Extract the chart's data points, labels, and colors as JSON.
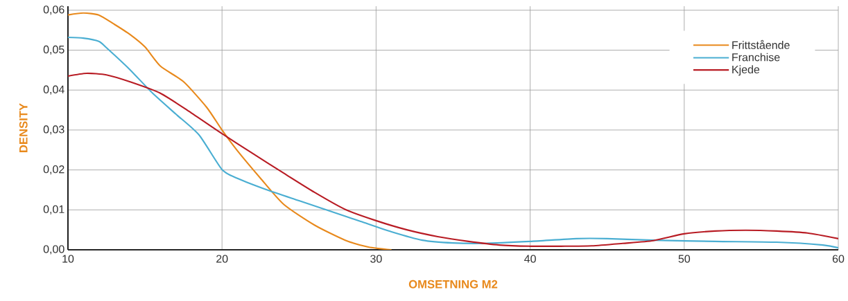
{
  "chart_data": {
    "type": "line",
    "xlabel": "OMSETNING M2",
    "ylabel": "DENSITY",
    "xlim": [
      10,
      60
    ],
    "ylim": [
      0,
      0.061
    ],
    "xticks": [
      10,
      20,
      30,
      40,
      50,
      60
    ],
    "yticks": [
      {
        "value": 0,
        "label": "0,00"
      },
      {
        "value": 0.01,
        "label": "0,01"
      },
      {
        "value": 0.02,
        "label": "0,02"
      },
      {
        "value": 0.03,
        "label": "0,03"
      },
      {
        "value": 0.04,
        "label": "0,04"
      },
      {
        "value": 0.05,
        "label": "0,05"
      },
      {
        "value": 0.06,
        "label": "0,06"
      }
    ],
    "grid": true,
    "legend": "top right",
    "marker": "none",
    "line_style": "solid",
    "series": [
      {
        "name": "Frittstående",
        "color": "#e8891c",
        "x": [
          10,
          11,
          12,
          13,
          14,
          15,
          16,
          17.5,
          19,
          20,
          21,
          22.5,
          24,
          26,
          28,
          29.5,
          31
        ],
        "values": [
          0.0588,
          0.0593,
          0.0588,
          0.0565,
          0.054,
          0.0508,
          0.046,
          0.0421,
          0.0357,
          0.03,
          0.0248,
          0.0179,
          0.0114,
          0.0062,
          0.0024,
          0.0007,
          0
        ]
      },
      {
        "name": "Franchise",
        "color": "#4aaed2",
        "x": [
          10,
          11,
          12,
          12.5,
          14,
          15.5,
          17,
          18.5,
          20,
          21,
          23,
          25,
          27,
          29,
          31,
          33,
          35,
          37,
          40,
          43,
          45,
          48,
          52,
          56,
          59,
          60
        ],
        "values": [
          0.0532,
          0.053,
          0.0522,
          0.0506,
          0.0452,
          0.0392,
          0.034,
          0.0288,
          0.0201,
          0.0179,
          0.0149,
          0.0123,
          0.0097,
          0.0071,
          0.0045,
          0.0024,
          0.0017,
          0.0016,
          0.0021,
          0.0028,
          0.0028,
          0.0024,
          0.0021,
          0.0019,
          0.0012,
          0.0005
        ]
      },
      {
        "name": "Kjede",
        "color": "#b81c24",
        "x": [
          10,
          11.2,
          12.5,
          14,
          16,
          18,
          20,
          22,
          24,
          26,
          28,
          30,
          32,
          34,
          36,
          38,
          40,
          42,
          44,
          46,
          48,
          50,
          52,
          54,
          56,
          58,
          60
        ],
        "values": [
          0.0435,
          0.0442,
          0.0438,
          0.0421,
          0.0392,
          0.0343,
          0.0291,
          0.0241,
          0.0192,
          0.0144,
          0.0101,
          0.0073,
          0.005,
          0.0033,
          0.0021,
          0.0012,
          0.0009,
          0.0009,
          0.001,
          0.0016,
          0.0023,
          0.004,
          0.0047,
          0.0049,
          0.0047,
          0.0042,
          0.0028
        ]
      }
    ]
  }
}
